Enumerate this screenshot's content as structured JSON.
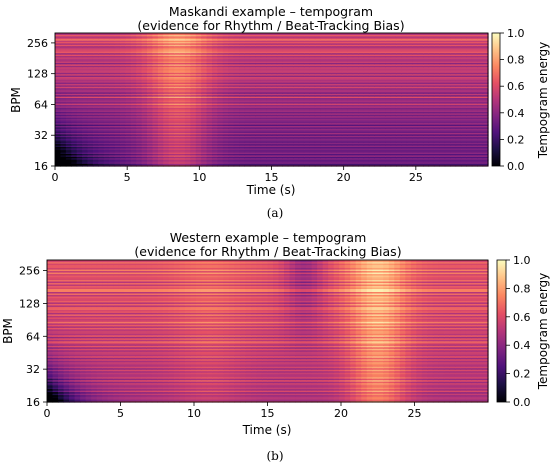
{
  "chart_data": [
    {
      "type": "heatmap",
      "title": "Maskandi example – tempogram",
      "subtitle": "(evidence for Rhythm / Beat-Tracking Bias)",
      "xlabel": "Time (s)",
      "ylabel": "BPM",
      "x_range": [
        0,
        30
      ],
      "x_ticks": [
        0,
        5,
        10,
        15,
        20,
        25
      ],
      "y_scale": "log2",
      "y_range": [
        16,
        320
      ],
      "y_ticks": [
        16,
        32,
        64,
        128,
        256
      ],
      "colormap": "magma",
      "colorbar_label": "Tempogram energy",
      "colorbar_range": [
        0,
        1
      ],
      "colorbar_ticks": [
        0.0,
        0.2,
        0.4,
        0.6,
        0.8,
        1.0
      ],
      "bright_tempo_bands_bpm": [
        275,
        215,
        140,
        115,
        96,
        76,
        64
      ],
      "high_energy_time_window_s": [
        6,
        11
      ],
      "caption": "(a)"
    },
    {
      "type": "heatmap",
      "title": "Western example – tempogram",
      "subtitle": "(evidence for Rhythm / Beat-Tracking Bias)",
      "xlabel": "Time (s)",
      "ylabel": "BPM",
      "x_range": [
        0,
        30
      ],
      "x_ticks": [
        0,
        5,
        10,
        15,
        20,
        25
      ],
      "y_scale": "log2",
      "y_range": [
        16,
        320
      ],
      "y_ticks": [
        16,
        32,
        64,
        128,
        256
      ],
      "colormap": "magma",
      "colorbar_label": "Tempogram energy",
      "colorbar_range": [
        0,
        1
      ],
      "colorbar_ticks": [
        0.0,
        0.2,
        0.4,
        0.6,
        0.8,
        1.0
      ],
      "bright_tempo_bands_bpm": [
        172,
        115,
        86,
        57
      ],
      "high_energy_time_window_s": [
        20,
        25
      ],
      "low_energy_time_window_s": [
        16,
        19
      ],
      "caption": "(b)"
    }
  ]
}
